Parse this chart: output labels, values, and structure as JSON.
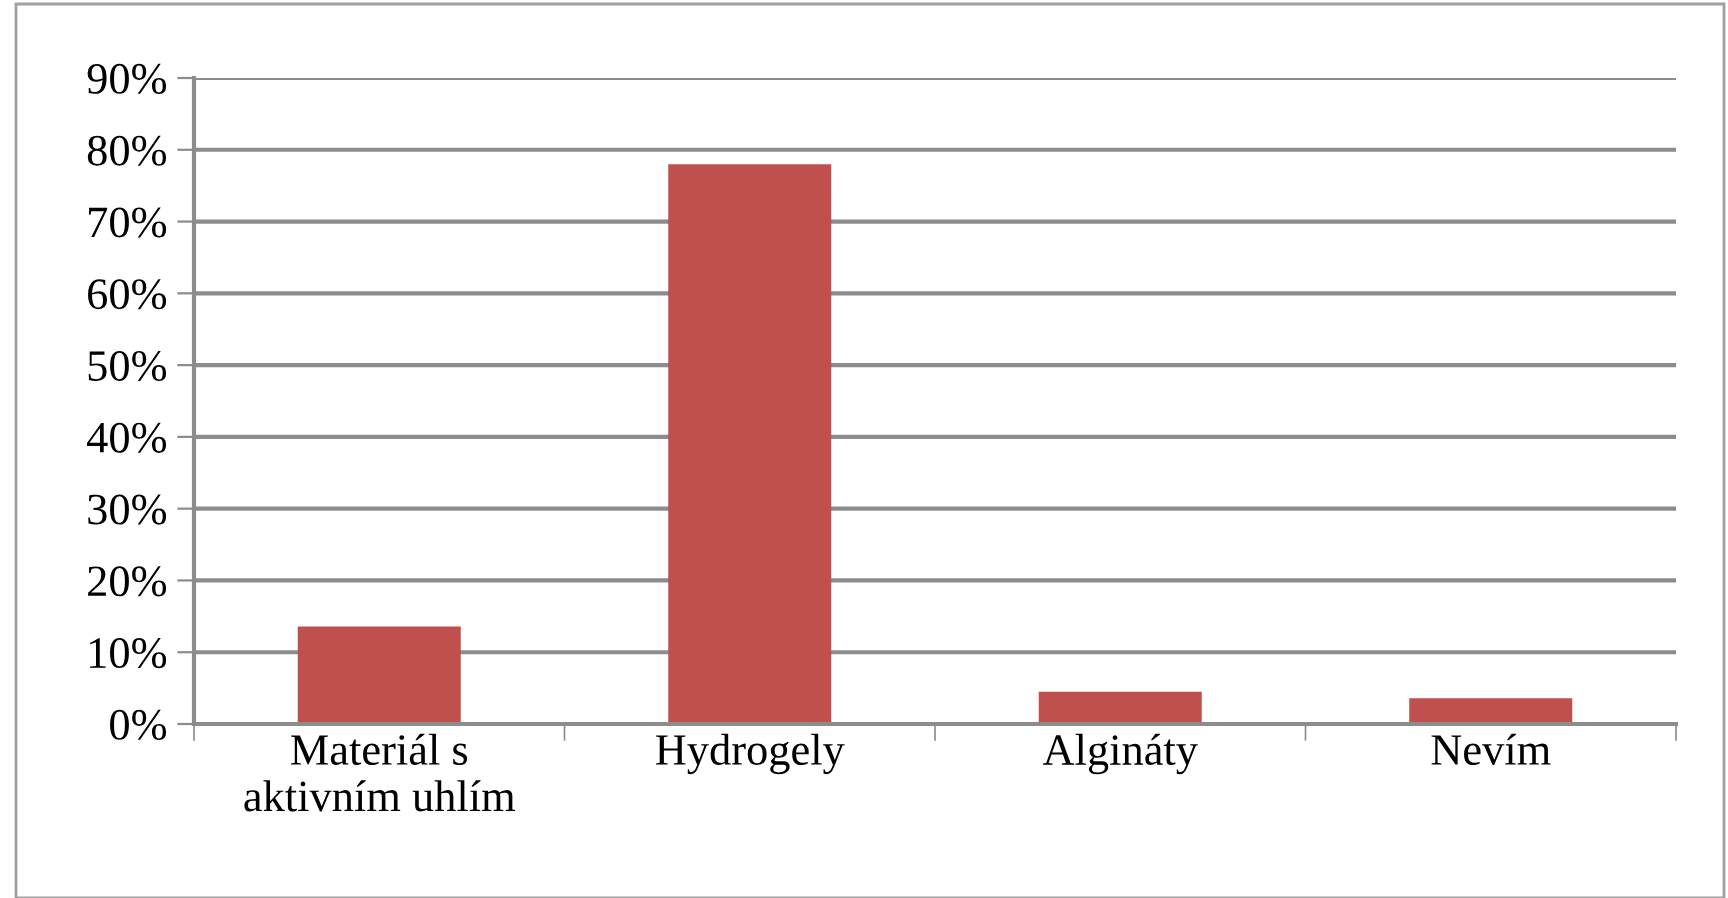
{
  "chart_data": {
    "type": "bar",
    "categories": [
      "Materiál s\naktivním uhlím",
      "Hydrogely",
      "Algináty",
      "Nevím"
    ],
    "values": [
      13.6,
      78,
      4.5,
      3.6
    ],
    "color": "#c0504d",
    "ylim": [
      0,
      90
    ],
    "yticks": [
      {
        "value": 0,
        "label": "0%"
      },
      {
        "value": 10,
        "label": "10%"
      },
      {
        "value": 20,
        "label": "20%"
      },
      {
        "value": 30,
        "label": "30%"
      },
      {
        "value": 40,
        "label": "40%"
      },
      {
        "value": 50,
        "label": "50%"
      },
      {
        "value": 60,
        "label": "60%"
      },
      {
        "value": 70,
        "label": "70%"
      },
      {
        "value": 80,
        "label": "80%"
      },
      {
        "value": 90,
        "label": "90%"
      }
    ],
    "grid": "y"
  }
}
